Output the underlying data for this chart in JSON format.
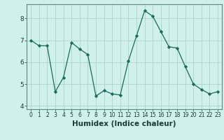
{
  "x": [
    0,
    1,
    2,
    3,
    4,
    5,
    6,
    7,
    8,
    9,
    10,
    11,
    12,
    13,
    14,
    15,
    16,
    17,
    18,
    19,
    20,
    21,
    22,
    23
  ],
  "y": [
    7.0,
    6.75,
    6.75,
    4.65,
    5.3,
    6.9,
    6.6,
    6.35,
    4.45,
    4.7,
    4.55,
    4.5,
    6.05,
    7.2,
    8.35,
    8.1,
    7.4,
    6.7,
    6.65,
    5.8,
    5.0,
    4.75,
    4.55,
    4.65
  ],
  "xlabel": "Humidex (Indice chaleur)",
  "ylim": [
    3.85,
    8.65
  ],
  "xlim": [
    -0.5,
    23.5
  ],
  "yticks": [
    4,
    5,
    6,
    7,
    8
  ],
  "xticks": [
    0,
    1,
    2,
    3,
    4,
    5,
    6,
    7,
    8,
    9,
    10,
    11,
    12,
    13,
    14,
    15,
    16,
    17,
    18,
    19,
    20,
    21,
    22,
    23
  ],
  "line_color": "#1a6b5a",
  "marker_color": "#1a6b5a",
  "bg_color": "#cff0eb",
  "grid_color": "#aad4cc",
  "xlabel_fontsize": 7.5,
  "tick_fontsize_x": 5.5,
  "tick_fontsize_y": 6.5
}
